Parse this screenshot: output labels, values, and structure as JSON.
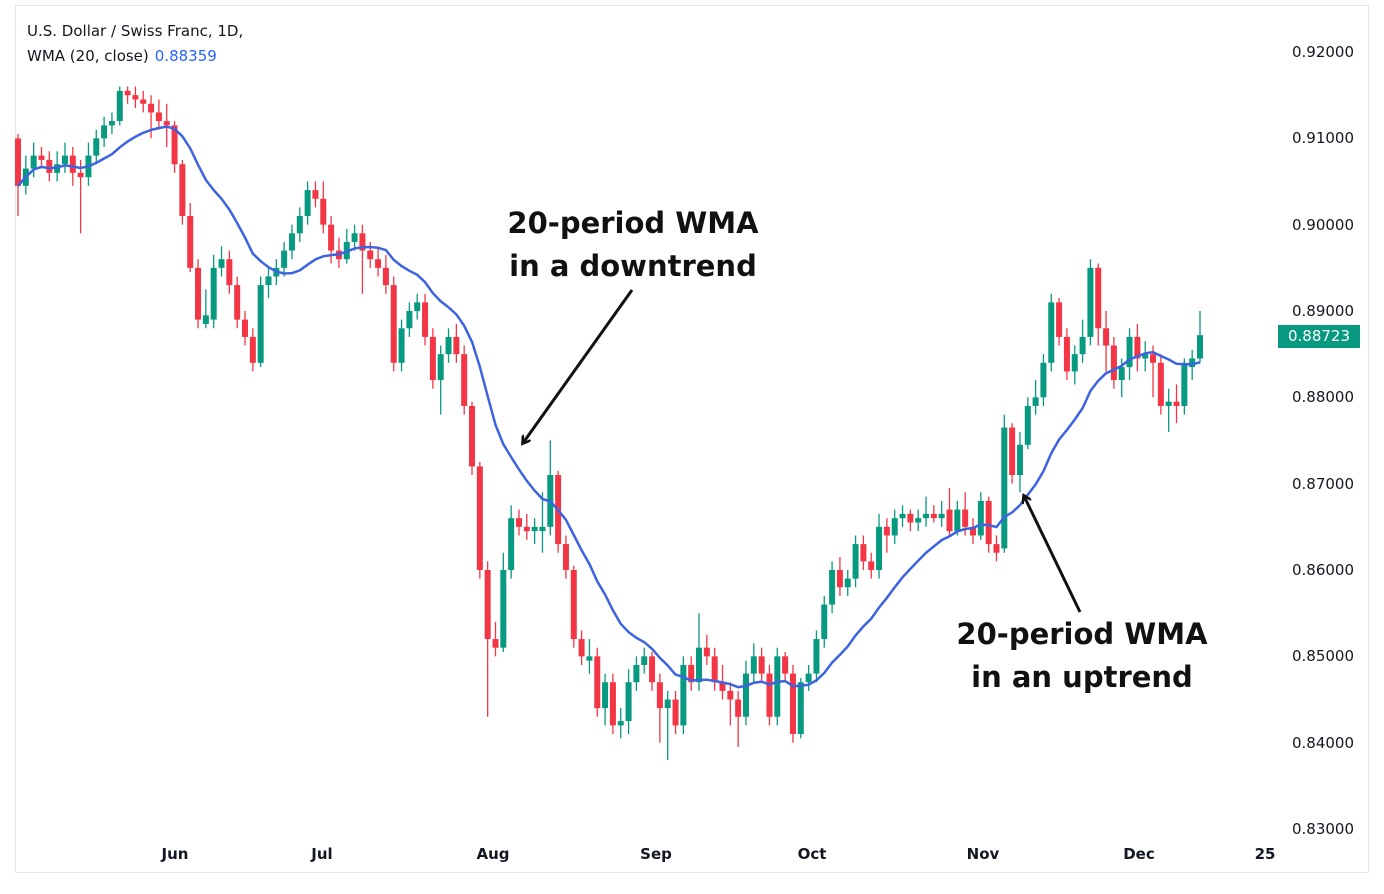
{
  "legend": {
    "symbol": "U.S. Dollar / Swiss Franc, 1D,",
    "indicator": "WMA (20, close)",
    "indicator_value": "0.88359"
  },
  "last_price": "0.88723",
  "annotations": [
    {
      "lines": [
        "20-period WMA",
        "in a downtrend"
      ]
    },
    {
      "lines": [
        "20-period WMA",
        "in an uptrend"
      ]
    }
  ],
  "colors": {
    "up": "#089981",
    "down": "#f23645",
    "wma": "#3d63e0",
    "badge": "#089981"
  },
  "chart_data": {
    "type": "candlestick",
    "title": "U.S. Dollar / Swiss Franc, 1D",
    "ylim": [
      0.83,
      0.92
    ],
    "y_ticks": [
      "0.92000",
      "0.91000",
      "0.90000",
      "0.89000",
      "0.88000",
      "0.87000",
      "0.86000",
      "0.85000",
      "0.84000",
      "0.83000"
    ],
    "x_ticks": [
      "Jun",
      "Jul",
      "Aug",
      "Sep",
      "Oct",
      "Nov",
      "Dec",
      "25"
    ],
    "overlay": {
      "name": "WMA (20, close)",
      "period": 20
    },
    "grid": false,
    "candles_ohlc": [
      [
        0.91,
        0.9105,
        0.901,
        0.9045
      ],
      [
        0.9045,
        0.908,
        0.9035,
        0.9065
      ],
      [
        0.9065,
        0.9095,
        0.9055,
        0.908
      ],
      [
        0.908,
        0.909,
        0.9065,
        0.9075
      ],
      [
        0.9075,
        0.9085,
        0.905,
        0.906
      ],
      [
        0.906,
        0.9085,
        0.905,
        0.907
      ],
      [
        0.907,
        0.9095,
        0.906,
        0.908
      ],
      [
        0.908,
        0.909,
        0.9045,
        0.906
      ],
      [
        0.906,
        0.9075,
        0.899,
        0.9055
      ],
      [
        0.9055,
        0.9095,
        0.9045,
        0.908
      ],
      [
        0.908,
        0.911,
        0.907,
        0.91
      ],
      [
        0.91,
        0.9125,
        0.909,
        0.9115
      ],
      [
        0.9115,
        0.913,
        0.9105,
        0.912
      ],
      [
        0.912,
        0.916,
        0.9115,
        0.9155
      ],
      [
        0.9155,
        0.916,
        0.914,
        0.915
      ],
      [
        0.915,
        0.916,
        0.9135,
        0.9145
      ],
      [
        0.9145,
        0.9155,
        0.913,
        0.914
      ],
      [
        0.914,
        0.915,
        0.91,
        0.913
      ],
      [
        0.913,
        0.9145,
        0.911,
        0.912
      ],
      [
        0.912,
        0.914,
        0.909,
        0.9115
      ],
      [
        0.9115,
        0.912,
        0.906,
        0.907
      ],
      [
        0.907,
        0.9075,
        0.9,
        0.901
      ],
      [
        0.901,
        0.9025,
        0.8945,
        0.895
      ],
      [
        0.895,
        0.896,
        0.888,
        0.889
      ],
      [
        0.8885,
        0.8925,
        0.888,
        0.8895
      ],
      [
        0.889,
        0.8965,
        0.888,
        0.895
      ],
      [
        0.895,
        0.8975,
        0.894,
        0.896
      ],
      [
        0.896,
        0.897,
        0.892,
        0.893
      ],
      [
        0.893,
        0.894,
        0.888,
        0.889
      ],
      [
        0.889,
        0.89,
        0.886,
        0.887
      ],
      [
        0.887,
        0.888,
        0.883,
        0.884
      ],
      [
        0.884,
        0.894,
        0.8835,
        0.893
      ],
      [
        0.893,
        0.895,
        0.8915,
        0.894
      ],
      [
        0.894,
        0.896,
        0.893,
        0.895
      ],
      [
        0.895,
        0.898,
        0.894,
        0.897
      ],
      [
        0.897,
        0.9,
        0.896,
        0.899
      ],
      [
        0.899,
        0.902,
        0.898,
        0.901
      ],
      [
        0.901,
        0.905,
        0.9,
        0.904
      ],
      [
        0.904,
        0.905,
        0.902,
        0.903
      ],
      [
        0.903,
        0.905,
        0.899,
        0.9
      ],
      [
        0.9,
        0.901,
        0.8955,
        0.897
      ],
      [
        0.897,
        0.8985,
        0.895,
        0.896
      ],
      [
        0.896,
        0.8995,
        0.8955,
        0.898
      ],
      [
        0.898,
        0.9,
        0.897,
        0.899
      ],
      [
        0.899,
        0.9,
        0.892,
        0.897
      ],
      [
        0.897,
        0.898,
        0.895,
        0.896
      ],
      [
        0.896,
        0.8975,
        0.894,
        0.895
      ],
      [
        0.895,
        0.8965,
        0.892,
        0.893
      ],
      [
        0.893,
        0.894,
        0.883,
        0.884
      ],
      [
        0.884,
        0.889,
        0.883,
        0.888
      ],
      [
        0.888,
        0.891,
        0.887,
        0.89
      ],
      [
        0.89,
        0.892,
        0.889,
        0.891
      ],
      [
        0.891,
        0.892,
        0.886,
        0.887
      ],
      [
        0.887,
        0.888,
        0.881,
        0.882
      ],
      [
        0.882,
        0.886,
        0.878,
        0.885
      ],
      [
        0.885,
        0.888,
        0.884,
        0.887
      ],
      [
        0.887,
        0.8885,
        0.884,
        0.885
      ],
      [
        0.885,
        0.886,
        0.878,
        0.879
      ],
      [
        0.879,
        0.8795,
        0.871,
        0.872
      ],
      [
        0.872,
        0.8725,
        0.859,
        0.86
      ],
      [
        0.86,
        0.861,
        0.843,
        0.852
      ],
      [
        0.852,
        0.854,
        0.85,
        0.851
      ],
      [
        0.851,
        0.862,
        0.8505,
        0.86
      ],
      [
        0.86,
        0.8675,
        0.859,
        0.866
      ],
      [
        0.866,
        0.867,
        0.864,
        0.865
      ],
      [
        0.865,
        0.8665,
        0.8635,
        0.8645
      ],
      [
        0.8645,
        0.866,
        0.863,
        0.865
      ],
      [
        0.8645,
        0.869,
        0.862,
        0.865
      ],
      [
        0.865,
        0.875,
        0.864,
        0.871
      ],
      [
        0.871,
        0.8715,
        0.862,
        0.863
      ],
      [
        0.863,
        0.864,
        0.859,
        0.86
      ],
      [
        0.86,
        0.8605,
        0.851,
        0.852
      ],
      [
        0.852,
        0.853,
        0.849,
        0.85
      ],
      [
        0.8495,
        0.852,
        0.848,
        0.85
      ],
      [
        0.85,
        0.851,
        0.843,
        0.844
      ],
      [
        0.844,
        0.848,
        0.842,
        0.847
      ],
      [
        0.847,
        0.848,
        0.841,
        0.842
      ],
      [
        0.842,
        0.844,
        0.8405,
        0.8425
      ],
      [
        0.8425,
        0.8485,
        0.841,
        0.847
      ],
      [
        0.847,
        0.85,
        0.846,
        0.849
      ],
      [
        0.849,
        0.851,
        0.848,
        0.85
      ],
      [
        0.85,
        0.8505,
        0.846,
        0.847
      ],
      [
        0.847,
        0.848,
        0.84,
        0.844
      ],
      [
        0.844,
        0.846,
        0.838,
        0.845
      ],
      [
        0.845,
        0.846,
        0.841,
        0.842
      ],
      [
        0.842,
        0.85,
        0.841,
        0.849
      ],
      [
        0.849,
        0.85,
        0.846,
        0.847
      ],
      [
        0.847,
        0.855,
        0.846,
        0.851
      ],
      [
        0.851,
        0.8525,
        0.849,
        0.85
      ],
      [
        0.85,
        0.851,
        0.846,
        0.847
      ],
      [
        0.847,
        0.849,
        0.845,
        0.846
      ],
      [
        0.846,
        0.847,
        0.842,
        0.845
      ],
      [
        0.845,
        0.846,
        0.8395,
        0.843
      ],
      [
        0.843,
        0.8495,
        0.842,
        0.848
      ],
      [
        0.848,
        0.8515,
        0.847,
        0.85
      ],
      [
        0.85,
        0.851,
        0.847,
        0.848
      ],
      [
        0.848,
        0.849,
        0.842,
        0.843
      ],
      [
        0.843,
        0.851,
        0.842,
        0.85
      ],
      [
        0.85,
        0.8505,
        0.847,
        0.848
      ],
      [
        0.848,
        0.849,
        0.84,
        0.841
      ],
      [
        0.841,
        0.8475,
        0.8405,
        0.847
      ],
      [
        0.847,
        0.849,
        0.846,
        0.848
      ],
      [
        0.848,
        0.853,
        0.847,
        0.852
      ],
      [
        0.852,
        0.857,
        0.851,
        0.856
      ],
      [
        0.856,
        0.861,
        0.855,
        0.86
      ],
      [
        0.86,
        0.8615,
        0.857,
        0.858
      ],
      [
        0.858,
        0.86,
        0.857,
        0.859
      ],
      [
        0.859,
        0.864,
        0.858,
        0.863
      ],
      [
        0.863,
        0.864,
        0.86,
        0.861
      ],
      [
        0.861,
        0.862,
        0.859,
        0.86
      ],
      [
        0.86,
        0.8665,
        0.859,
        0.865
      ],
      [
        0.865,
        0.866,
        0.862,
        0.864
      ],
      [
        0.864,
        0.867,
        0.863,
        0.866
      ],
      [
        0.866,
        0.8675,
        0.865,
        0.8665
      ],
      [
        0.8665,
        0.867,
        0.8645,
        0.8655
      ],
      [
        0.8655,
        0.867,
        0.8645,
        0.866
      ],
      [
        0.866,
        0.8685,
        0.865,
        0.8665
      ],
      [
        0.8665,
        0.8675,
        0.8655,
        0.866
      ],
      [
        0.866,
        0.868,
        0.865,
        0.8665
      ],
      [
        0.867,
        0.8695,
        0.864,
        0.8645
      ],
      [
        0.8645,
        0.868,
        0.864,
        0.867
      ],
      [
        0.867,
        0.869,
        0.864,
        0.865
      ],
      [
        0.865,
        0.866,
        0.863,
        0.864
      ],
      [
        0.864,
        0.869,
        0.8635,
        0.868
      ],
      [
        0.868,
        0.8685,
        0.862,
        0.863
      ],
      [
        0.863,
        0.864,
        0.861,
        0.862
      ],
      [
        0.8625,
        0.878,
        0.862,
        0.8765
      ],
      [
        0.8765,
        0.877,
        0.87,
        0.871
      ],
      [
        0.871,
        0.876,
        0.869,
        0.8745
      ],
      [
        0.8745,
        0.88,
        0.874,
        0.879
      ],
      [
        0.879,
        0.882,
        0.878,
        0.88
      ],
      [
        0.88,
        0.885,
        0.879,
        0.884
      ],
      [
        0.884,
        0.892,
        0.883,
        0.891
      ],
      [
        0.891,
        0.8915,
        0.886,
        0.887
      ],
      [
        0.887,
        0.888,
        0.882,
        0.883
      ],
      [
        0.883,
        0.886,
        0.8815,
        0.885
      ],
      [
        0.885,
        0.889,
        0.884,
        0.887
      ],
      [
        0.887,
        0.896,
        0.886,
        0.895
      ],
      [
        0.895,
        0.8955,
        0.886,
        0.888
      ],
      [
        0.888,
        0.89,
        0.883,
        0.886
      ],
      [
        0.886,
        0.887,
        0.881,
        0.882
      ],
      [
        0.882,
        0.8845,
        0.88,
        0.8835
      ],
      [
        0.8835,
        0.888,
        0.882,
        0.887
      ],
      [
        0.887,
        0.8885,
        0.883,
        0.8845
      ],
      [
        0.8845,
        0.8865,
        0.883,
        0.885
      ],
      [
        0.885,
        0.886,
        0.88,
        0.884
      ],
      [
        0.884,
        0.885,
        0.878,
        0.879
      ],
      [
        0.879,
        0.881,
        0.876,
        0.8795
      ],
      [
        0.8795,
        0.8815,
        0.877,
        0.879
      ],
      [
        0.879,
        0.8845,
        0.878,
        0.884
      ],
      [
        0.8835,
        0.8855,
        0.882,
        0.8845
      ],
      [
        0.8845,
        0.89,
        0.884,
        0.8872
      ]
    ]
  }
}
